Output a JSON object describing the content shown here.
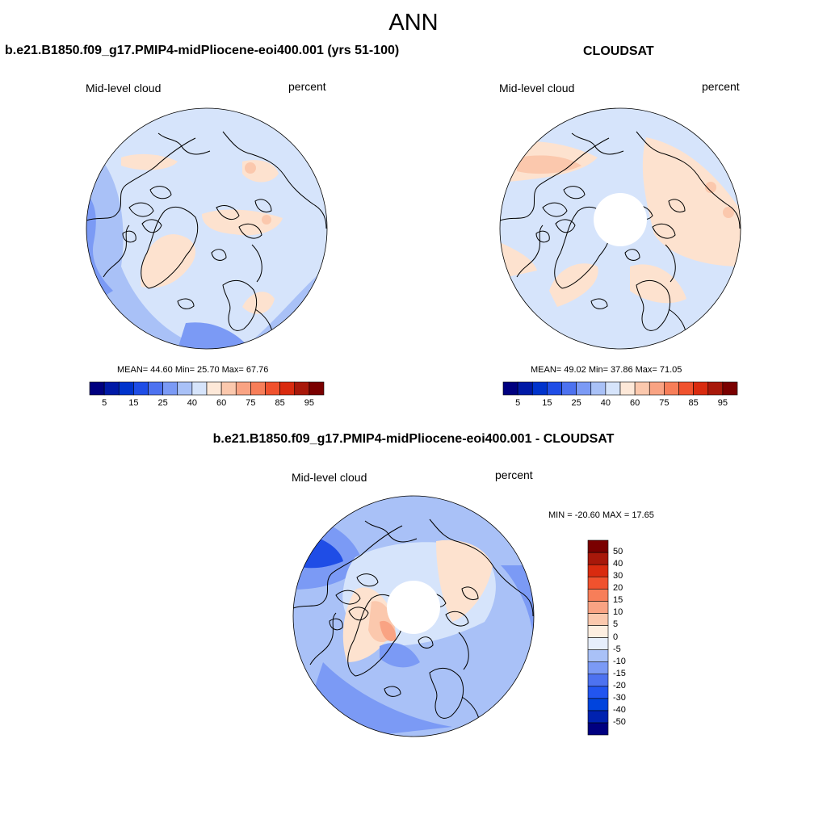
{
  "figure": {
    "title": "ANN"
  },
  "panels": [
    {
      "title": "b.e21.B1850.f09_g17.PMIP4-midPliocene-eoi400.001 (yrs 51-100)",
      "left_label": "Mid-level cloud",
      "right_label": "percent",
      "stats": "MEAN=  44.60  Min=  25.70  Max=  67.76",
      "mean": 44.6,
      "min": 25.7,
      "max": 67.76
    },
    {
      "title": "CLOUDSAT",
      "left_label": "Mid-level cloud",
      "right_label": "percent",
      "stats": "MEAN=  49.02  Min=  37.86  Max=  71.05",
      "mean": 49.02,
      "min": 37.86,
      "max": 71.05
    },
    {
      "title": "b.e21.B1850.f09_g17.PMIP4-midPliocene-eoi400.001 - CLOUDSAT",
      "left_label": "Mid-level cloud",
      "right_label": "percent",
      "stats": "MIN = -20.60 MAX =  17.65",
      "min": -20.6,
      "max": 17.65
    }
  ],
  "colorbar_abs": {
    "colors": [
      "#00007f",
      "#0019a6",
      "#0033cc",
      "#1f4de6",
      "#4d72f0",
      "#7b9af5",
      "#a9c1f7",
      "#d6e4fb",
      "#fde8d8",
      "#fbc8ad",
      "#f9a383",
      "#f77e59",
      "#f0522e",
      "#d92b0f",
      "#a8180a",
      "#7a0000"
    ],
    "tick_labels": [
      "5",
      "15",
      "25",
      "40",
      "60",
      "75",
      "85",
      "95"
    ]
  },
  "colorbar_diff": {
    "colors": [
      "#000080",
      "#0022b0",
      "#0044dd",
      "#2255f0",
      "#4d72f0",
      "#7b9af5",
      "#a9c1f7",
      "#e6eefc",
      "#fdeee0",
      "#fbc8ad",
      "#f9a383",
      "#f77e59",
      "#f0522e",
      "#d92b0f",
      "#a8180a",
      "#7a0000"
    ],
    "tick_labels": [
      "50",
      "40",
      "30",
      "20",
      "15",
      "10",
      "5",
      "0",
      "-5",
      "-10",
      "-15",
      "-20",
      "-30",
      "-40",
      "-50"
    ]
  },
  "map_colors": {
    "base_light_blue": "#d6e4fb",
    "mid_blue": "#a9c1f7",
    "blue": "#7b9af5",
    "deep_blue": "#4d72f0",
    "darker_blue": "#1f4de6",
    "light_orange": "#fde2cf",
    "orange": "#fbc8ad",
    "darker_orange": "#f9a383",
    "missing": "#ffffff",
    "coast": "#000000"
  }
}
